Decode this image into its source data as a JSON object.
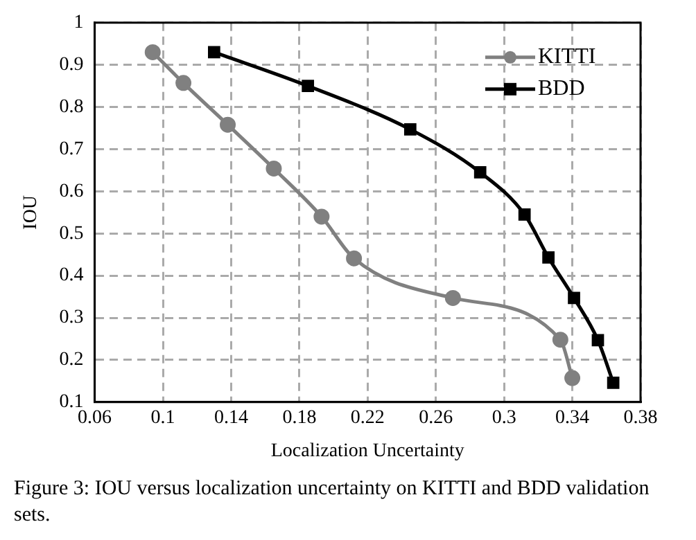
{
  "chart_data": {
    "type": "line",
    "xlabel": "Localization Uncertainty",
    "ylabel": "IOU",
    "xlim": [
      0.06,
      0.38
    ],
    "xticks": [
      {
        "value": 0.06,
        "label": "0.06"
      },
      {
        "value": 0.1,
        "label": "0.1"
      },
      {
        "value": 0.14,
        "label": "0.14"
      },
      {
        "value": 0.18,
        "label": "0.18"
      },
      {
        "value": 0.22,
        "label": "0.22"
      },
      {
        "value": 0.26,
        "label": "0.26"
      },
      {
        "value": 0.3,
        "label": "0.3"
      },
      {
        "value": 0.34,
        "label": "0.34"
      },
      {
        "value": 0.38,
        "label": "0.38"
      }
    ],
    "ylim": [
      0.1,
      1
    ],
    "yticks": [
      {
        "value": 0.1,
        "label": "0.1"
      },
      {
        "value": 0.2,
        "label": "0.2"
      },
      {
        "value": 0.3,
        "label": "0.3"
      },
      {
        "value": 0.4,
        "label": "0.4"
      },
      {
        "value": 0.5,
        "label": "0.5"
      },
      {
        "value": 0.6,
        "label": "0.6"
      },
      {
        "value": 0.7,
        "label": "0.7"
      },
      {
        "value": 0.8,
        "label": "0.8"
      },
      {
        "value": 0.9,
        "label": "0.9"
      },
      1
    ],
    "grid": true,
    "legend": "top right",
    "line_style": "solid",
    "series": [
      {
        "name": "KITTI",
        "color": "#808080",
        "marker": "circle",
        "x": [
          0.094,
          0.112,
          0.138,
          0.165,
          0.193,
          0.212,
          0.27,
          0.333,
          0.34
        ],
        "values": [
          0.93,
          0.857,
          0.758,
          0.654,
          0.54,
          0.441,
          0.347,
          0.248,
          0.157
        ]
      },
      {
        "name": "BDD",
        "color": "#000000",
        "marker": "square",
        "x": [
          0.13,
          0.185,
          0.245,
          0.286,
          0.312,
          0.326,
          0.341,
          0.355,
          0.364
        ],
        "values": [
          0.93,
          0.85,
          0.747,
          0.645,
          0.545,
          0.443,
          0.347,
          0.247,
          0.146
        ]
      }
    ],
    "annotations": [
      "Figure 3: IOU versus localization uncertainty on KITTI and BDD validation sets."
    ]
  }
}
